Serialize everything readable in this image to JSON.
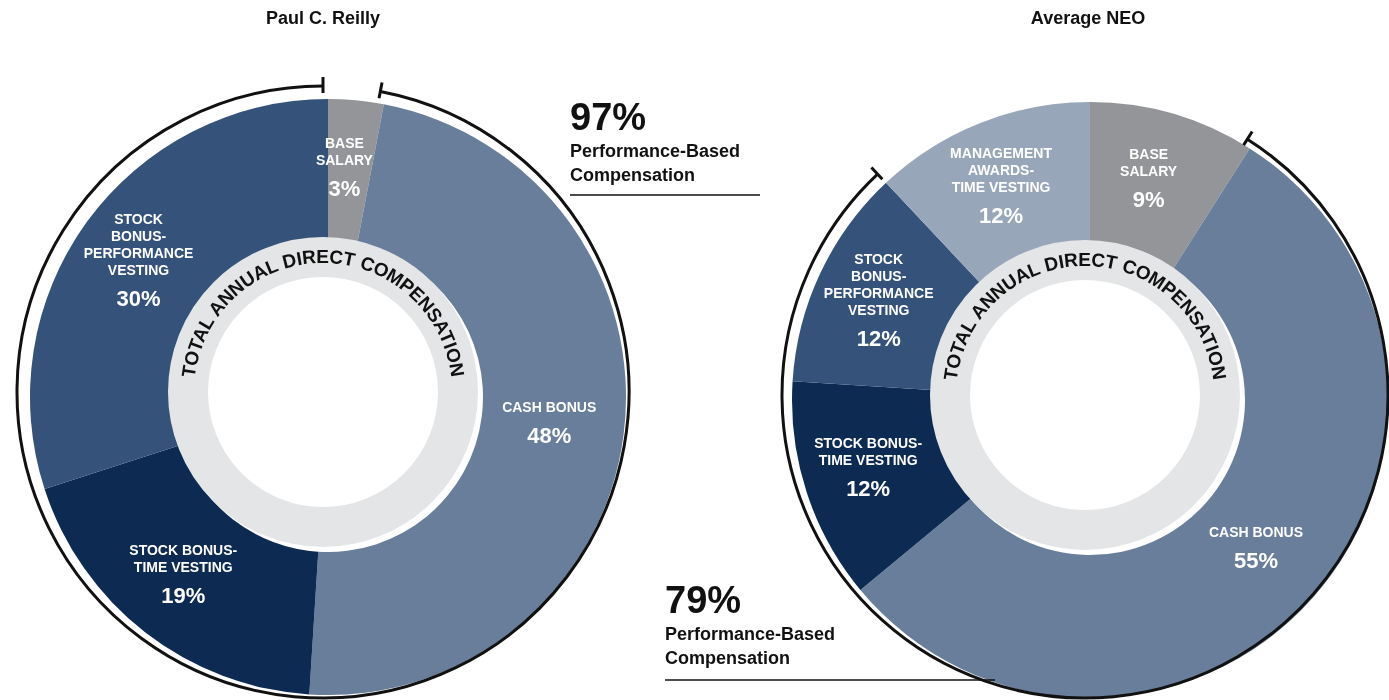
{
  "chart_data": [
    {
      "type": "donut",
      "title": "Paul C. Reilly",
      "categories": [
        "BASE SALARY",
        "CASH BONUS",
        "STOCK BONUS-TIME VESTING",
        "STOCK BONUS-PERFORMANCE VESTING"
      ],
      "values": [
        3,
        48,
        19,
        30
      ],
      "value_labels": [
        "3%",
        "48%",
        "19%",
        "30%"
      ],
      "colors": [
        "#939598",
        "#687e9a",
        "#0c2a52",
        "#34527a"
      ],
      "legend": false,
      "annotations": [
        "TOTAL ANNUAL DIRECT COMPENSATION",
        "97%",
        "Performance-Based Compensation"
      ]
    },
    {
      "type": "donut",
      "title": "Average NEO",
      "categories": [
        "BASE SALARY",
        "CASH BONUS",
        "STOCK BONUS-TIME VESTING",
        "STOCK BONUS-PERFORMANCE VESTING",
        "MANAGEMENT AWARDS-TIME VESTING"
      ],
      "values": [
        9,
        55,
        12,
        12,
        12
      ],
      "value_labels": [
        "9%",
        "55%",
        "12%",
        "12%",
        "12%"
      ],
      "colors": [
        "#939598",
        "#687e9a",
        "#0c2a52",
        "#34527a",
        "#98a6ba"
      ],
      "legend": false,
      "annotations": [
        "TOTAL ANNUAL DIRECT COMPENSATION",
        "79%",
        "Performance-Based Compensation"
      ]
    }
  ]
}
